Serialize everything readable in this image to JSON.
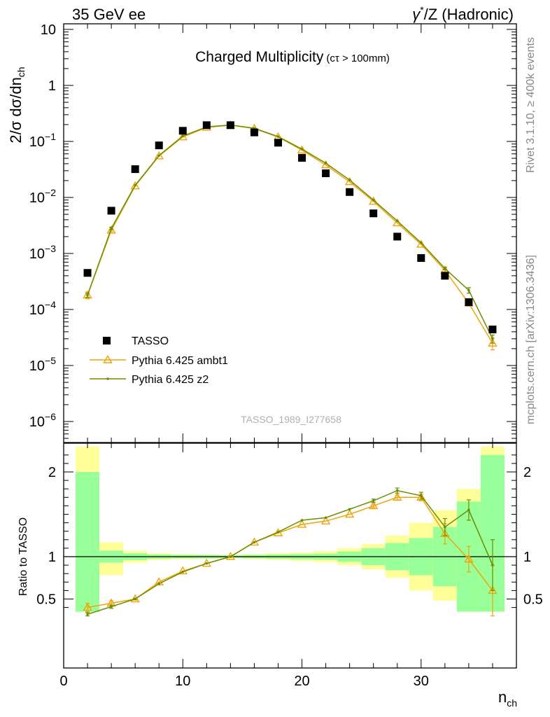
{
  "header": {
    "left": "35 GeV ee",
    "right_pre": "γ",
    "right_sup": "*",
    "right_post": "/Z (Hadronic)"
  },
  "plot": {
    "title": "Charged Multiplicity",
    "title_sub": "(cτ > 100mm)",
    "ylabel": "2/σ dσ/dn",
    "ylabel_sub": "ch",
    "watermark": "TASSO_1989_I277658",
    "side_rivet": "Rivet 3.1.10, ≥ 400k events",
    "side_mcplots": "mcplots.cern.ch [arXiv:1306.3436]"
  },
  "ratio": {
    "ylabel": "Ratio to TASSO"
  },
  "xaxis": {
    "label": "n",
    "label_sub": "ch"
  },
  "legend": {
    "data": "TASSO",
    "mc1": "Pythia 6.425 ambt1",
    "mc2": "Pythia 6.425 z2"
  },
  "colors": {
    "data": "#000000",
    "mc1": "#f0a30a",
    "mc2": "#6b8e00",
    "band_inner": "#99ff99",
    "band_outer": "#ffff99"
  },
  "chart_data": {
    "type": "scatter",
    "x_range": [
      0,
      38
    ],
    "main_ylim": [
      3e-07,
      15
    ],
    "main_yscale": "log",
    "ratio_ylim": [
      0.35,
      2.3
    ],
    "x_ticks": [
      0,
      10,
      20,
      30
    ],
    "main_y_ticks": [
      {
        "v": 1e-06,
        "base": "10",
        "exp": "−6"
      },
      {
        "v": 1e-05,
        "base": "10",
        "exp": "−5"
      },
      {
        "v": 0.0001,
        "base": "10",
        "exp": "−4"
      },
      {
        "v": 0.001,
        "base": "10",
        "exp": "−3"
      },
      {
        "v": 0.01,
        "base": "10",
        "exp": "−2"
      },
      {
        "v": 0.1,
        "base": "10",
        "exp": "−1"
      },
      {
        "v": 1,
        "base": "1",
        "exp": ""
      },
      {
        "v": 10,
        "base": "10",
        "exp": ""
      }
    ],
    "ratio_y_ticks": [
      {
        "v": 0.5,
        "label": "0.5"
      },
      {
        "v": 1,
        "label": "1"
      },
      {
        "v": 2,
        "label": "2"
      }
    ],
    "data": {
      "name": "TASSO",
      "x": [
        2,
        4,
        6,
        8,
        10,
        12,
        14,
        16,
        18,
        20,
        22,
        24,
        26,
        28,
        30,
        32,
        34,
        36
      ],
      "y": [
        0.00045,
        0.0058,
        0.032,
        0.085,
        0.155,
        0.195,
        0.195,
        0.145,
        0.095,
        0.051,
        0.027,
        0.0125,
        0.0052,
        0.002,
        0.00083,
        0.0004,
        0.000135,
        4.4e-05
      ]
    },
    "band": {
      "x_edges": [
        1,
        3,
        5,
        7,
        9,
        11,
        13,
        15,
        17,
        19,
        21,
        23,
        25,
        27,
        29,
        31,
        33,
        35,
        37
      ],
      "inner_lo": [
        0.35,
        0.93,
        0.96,
        0.975,
        0.98,
        0.98,
        0.985,
        0.98,
        0.975,
        0.97,
        0.965,
        0.94,
        0.9,
        0.84,
        0.78,
        0.65,
        0.35,
        0.35
      ],
      "inner_hi": [
        2.0,
        1.07,
        1.04,
        1.025,
        1.02,
        1.02,
        1.015,
        1.02,
        1.025,
        1.03,
        1.035,
        1.06,
        1.1,
        1.16,
        1.22,
        1.35,
        1.65,
        2.2
      ],
      "outer_lo": [
        0.35,
        0.78,
        0.93,
        0.96,
        0.97,
        0.975,
        0.98,
        0.97,
        0.96,
        0.95,
        0.935,
        0.9,
        0.85,
        0.75,
        0.6,
        0.48,
        0.35,
        0.35
      ],
      "outer_hi": [
        2.3,
        1.17,
        1.07,
        1.04,
        1.03,
        1.025,
        1.02,
        1.03,
        1.04,
        1.05,
        1.065,
        1.1,
        1.15,
        1.25,
        1.4,
        1.55,
        1.8,
        2.3
      ]
    },
    "series": [
      {
        "name": "Pythia 6.425 ambt1",
        "x": [
          2,
          4,
          6,
          8,
          10,
          12,
          14,
          16,
          18,
          20,
          22,
          24,
          26,
          28,
          30,
          32,
          34,
          36
        ],
        "y": [
          0.00018,
          0.0026,
          0.016,
          0.055,
          0.12,
          0.178,
          0.195,
          0.17,
          0.12,
          0.07,
          0.038,
          0.019,
          0.0085,
          0.0035,
          0.00145,
          0.0005,
          0.00013,
          2.5e-05
        ],
        "y_err": [
          2.5e-05,
          0.00015,
          0,
          0,
          0,
          0,
          0,
          0,
          0,
          0,
          0,
          0,
          0,
          0,
          0,
          3e-05,
          1.5e-05,
          6e-06
        ],
        "ratio": [
          0.4,
          0.45,
          0.5,
          0.7,
          0.83,
          0.92,
          1.0,
          1.17,
          1.28,
          1.38,
          1.42,
          1.5,
          1.6,
          1.7,
          1.7,
          1.27,
          0.97,
          0.6
        ],
        "ratio_err": [
          0.05,
          0.03,
          0.01,
          0,
          0,
          0,
          0,
          0,
          0,
          0,
          0,
          0,
          0.02,
          0.03,
          0.04,
          0.12,
          0.15,
          0.3
        ]
      },
      {
        "name": "Pythia 6.425 z2",
        "x": [
          2,
          4,
          6,
          8,
          10,
          12,
          14,
          16,
          18,
          20,
          22,
          24,
          26,
          28,
          30,
          32,
          34,
          36
        ],
        "y": [
          0.00018,
          0.0028,
          0.0165,
          0.056,
          0.125,
          0.182,
          0.197,
          0.172,
          0.122,
          0.073,
          0.041,
          0.0205,
          0.009,
          0.0038,
          0.00155,
          0.00054,
          0.00022,
          3e-05
        ],
        "y_err": [
          1.5e-05,
          0.00015,
          0,
          0,
          0,
          0,
          0,
          0,
          0,
          0,
          0,
          0,
          0,
          0,
          0,
          3e-05,
          2.5e-05,
          5e-06
        ],
        "ratio": [
          0.32,
          0.41,
          0.5,
          0.68,
          0.82,
          0.92,
          1.0,
          1.17,
          1.29,
          1.43,
          1.46,
          1.56,
          1.66,
          1.78,
          1.72,
          1.35,
          1.55,
          0.9
        ],
        "ratio_err": [
          0.02,
          0.02,
          0.01,
          0,
          0,
          0,
          0,
          0,
          0,
          0,
          0,
          0,
          0.02,
          0.03,
          0.04,
          0.1,
          0.12,
          0.3
        ]
      }
    ]
  }
}
